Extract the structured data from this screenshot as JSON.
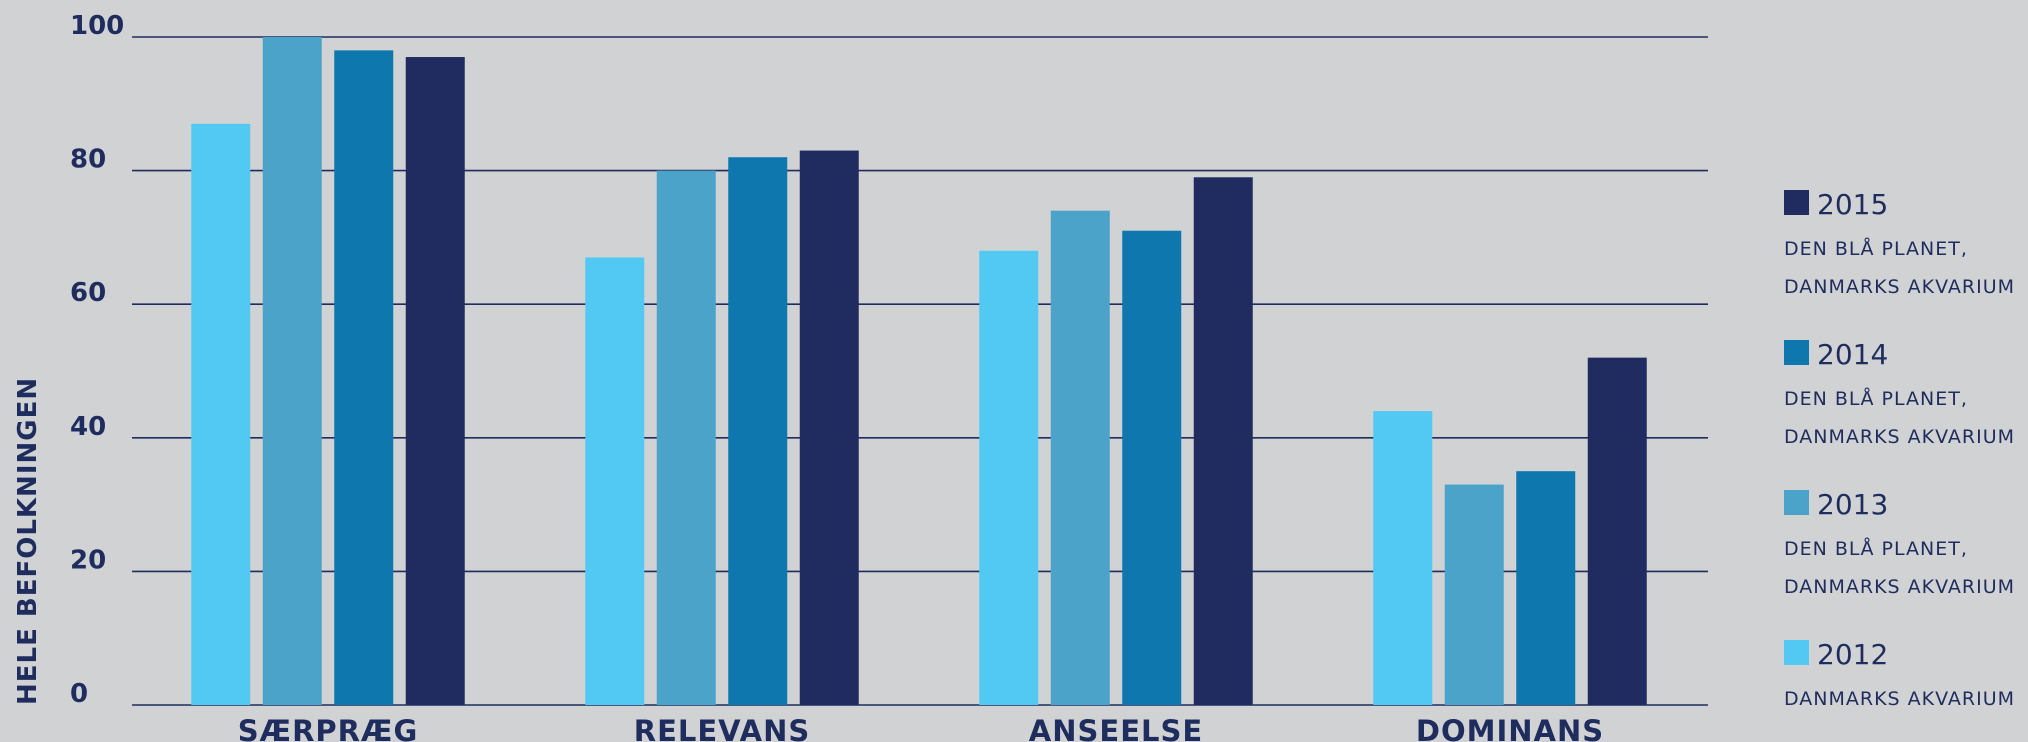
{
  "chart_data": {
    "type": "bar",
    "ylabel": "HELE BEFOLKNINGEN",
    "ylim": [
      0,
      100
    ],
    "yticks": [
      0,
      20,
      40,
      60,
      80,
      100
    ],
    "categories": [
      "SÆRPRÆG",
      "RELEVANS",
      "ANSEELSE",
      "DOMINANS"
    ],
    "grid": true,
    "legend_position": "right",
    "series": [
      {
        "name": "2012",
        "description": [
          "DANMARKS AKVARIUM"
        ],
        "color": "#52c9f2",
        "values": [
          87,
          67,
          68,
          44
        ]
      },
      {
        "name": "2013",
        "description": [
          "DEN BLÅ PLANET,",
          "DANMARKS AKVARIUM"
        ],
        "color": "#4ba3c9",
        "values": [
          100,
          80,
          74,
          33
        ]
      },
      {
        "name": "2014",
        "description": [
          "DEN BLÅ PLANET,",
          "DANMARKS AKVARIUM"
        ],
        "color": "#0e77ae",
        "values": [
          98,
          82,
          71,
          35
        ]
      },
      {
        "name": "2015",
        "description": [
          "DEN BLÅ PLANET,",
          "DANMARKS AKVARIUM"
        ],
        "color": "#202c60",
        "values": [
          97,
          83,
          79,
          52
        ]
      }
    ],
    "legend_order": [
      "2015",
      "2014",
      "2013",
      "2012"
    ],
    "axis_color": "#1f2d5e"
  }
}
